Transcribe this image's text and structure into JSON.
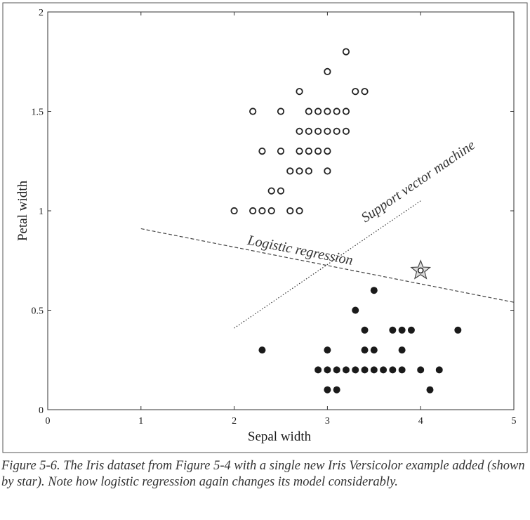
{
  "chart_data": {
    "type": "scatter",
    "xlabel": "Sepal width",
    "ylabel": "Petal width",
    "xlim": [
      0,
      5
    ],
    "ylim": [
      0,
      2
    ],
    "x_ticks": [
      0,
      1,
      2,
      3,
      4,
      5
    ],
    "x_tick_labels": [
      "0",
      "1",
      "2",
      "3",
      "4",
      "5"
    ],
    "y_ticks": [
      0,
      0.5,
      1,
      1.5,
      2
    ],
    "y_tick_labels": [
      "0",
      "0.5",
      "1",
      "1.5",
      "2"
    ],
    "grid": false,
    "series": [
      {
        "marker": "open-circle",
        "points": [
          [
            3.2,
            1.8
          ],
          [
            3.0,
            1.7
          ],
          [
            2.7,
            1.6
          ],
          [
            3.3,
            1.6
          ],
          [
            3.4,
            1.6
          ],
          [
            2.2,
            1.5
          ],
          [
            2.5,
            1.5
          ],
          [
            2.8,
            1.5
          ],
          [
            2.9,
            1.5
          ],
          [
            3.0,
            1.5
          ],
          [
            3.1,
            1.5
          ],
          [
            3.2,
            1.5
          ],
          [
            2.7,
            1.4
          ],
          [
            2.8,
            1.4
          ],
          [
            2.9,
            1.4
          ],
          [
            3.0,
            1.4
          ],
          [
            3.1,
            1.4
          ],
          [
            3.2,
            1.4
          ],
          [
            2.3,
            1.3
          ],
          [
            2.5,
            1.3
          ],
          [
            2.7,
            1.3
          ],
          [
            2.8,
            1.3
          ],
          [
            2.9,
            1.3
          ],
          [
            3.0,
            1.3
          ],
          [
            2.6,
            1.2
          ],
          [
            2.7,
            1.2
          ],
          [
            2.8,
            1.2
          ],
          [
            3.0,
            1.2
          ],
          [
            2.4,
            1.1
          ],
          [
            2.5,
            1.1
          ],
          [
            2.0,
            1.0
          ],
          [
            2.2,
            1.0
          ],
          [
            2.3,
            1.0
          ],
          [
            2.4,
            1.0
          ],
          [
            2.6,
            1.0
          ],
          [
            2.7,
            1.0
          ]
        ]
      },
      {
        "marker": "filled-circle",
        "points": [
          [
            3.5,
            0.6
          ],
          [
            3.3,
            0.5
          ],
          [
            3.4,
            0.4
          ],
          [
            3.7,
            0.4
          ],
          [
            3.8,
            0.4
          ],
          [
            3.9,
            0.4
          ],
          [
            4.4,
            0.4
          ],
          [
            2.3,
            0.3
          ],
          [
            3.0,
            0.3
          ],
          [
            3.4,
            0.3
          ],
          [
            3.5,
            0.3
          ],
          [
            3.8,
            0.3
          ],
          [
            2.9,
            0.2
          ],
          [
            3.0,
            0.2
          ],
          [
            3.1,
            0.2
          ],
          [
            3.2,
            0.2
          ],
          [
            3.3,
            0.2
          ],
          [
            3.4,
            0.2
          ],
          [
            3.5,
            0.2
          ],
          [
            3.6,
            0.2
          ],
          [
            3.7,
            0.2
          ],
          [
            3.8,
            0.2
          ],
          [
            4.0,
            0.2
          ],
          [
            4.2,
            0.2
          ],
          [
            3.0,
            0.1
          ],
          [
            3.1,
            0.1
          ],
          [
            4.1,
            0.1
          ]
        ]
      },
      {
        "marker": "star",
        "points": [
          [
            4.0,
            0.7
          ]
        ]
      }
    ],
    "lines": [
      {
        "label": "Logistic regression",
        "style": "dashed",
        "points": [
          [
            1.0,
            0.91
          ],
          [
            5.0,
            0.54
          ]
        ]
      },
      {
        "label": "Support vector machine",
        "style": "dotted",
        "points": [
          [
            2.0,
            0.41
          ],
          [
            4.0,
            1.05
          ]
        ]
      }
    ]
  },
  "caption": "Figure 5-6. The Iris dataset from Figure 5-4 with a single new Iris Versicolor example added (shown by star). Note how logistic regression again changes its model considerably."
}
